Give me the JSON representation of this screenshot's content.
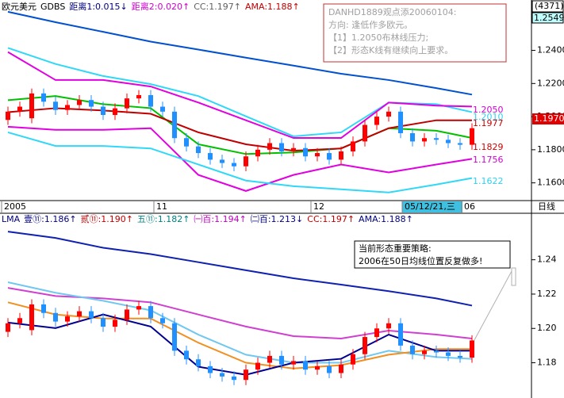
{
  "chart_data": [
    {
      "type": "candlestick",
      "header": [
        {
          "text": "欧元美元",
          "color": "#000000"
        },
        {
          "text": "GDBS",
          "color": "#000000"
        },
        {
          "text": "距离1:0.015↓",
          "color": "#000080"
        },
        {
          "text": "距离2:0.020↑",
          "color": "#d000d0"
        },
        {
          "text": "CC:1.197↑",
          "color": "#606060"
        },
        {
          "text": "AMA:1.188↑",
          "color": "#c00000"
        }
      ],
      "top_labels": [
        "(4371)",
        "1.2549"
      ],
      "current_label": "1.1970",
      "note": [
        "DANHD1889观点添20060104:",
        "方向: 逢低作多欧元。",
        "【1】1.2050布林线压力;",
        "【2】形态K线有继续向上要求。"
      ],
      "annotations": [
        {
          "text": "1.2050",
          "color": "#d000d0"
        },
        {
          "text": "1.2010",
          "color": "#30d0f0"
        },
        {
          "text": "1.1977",
          "color": "#d00000"
        },
        {
          "text": "1.1829",
          "color": "#d00000"
        },
        {
          "text": "1.1756",
          "color": "#d000d0"
        },
        {
          "text": "1.1622",
          "color": "#30d0f0"
        }
      ],
      "x_labels": [
        "2005",
        "11",
        "12",
        "05/12/21,三",
        "06"
      ],
      "period": "日线",
      "up_color": "#ff0000",
      "down_color": "#2090ff",
      "open": [
        1.198,
        1.203,
        1.199,
        1.214,
        1.209,
        1.204,
        1.207,
        1.21,
        1.206,
        1.201,
        1.205,
        1.211,
        1.213,
        1.206,
        1.203,
        1.187,
        1.182,
        1.178,
        1.174,
        1.172,
        1.17,
        1.176,
        1.18,
        1.184,
        1.179,
        1.181,
        1.176,
        1.178,
        1.174,
        1.179,
        1.185,
        1.195,
        1.2,
        1.203,
        1.19,
        1.185,
        1.187,
        1.186,
        1.184,
        1.183
      ],
      "high": [
        1.206,
        1.209,
        1.217,
        1.217,
        1.212,
        1.21,
        1.213,
        1.213,
        1.209,
        1.208,
        1.214,
        1.216,
        1.216,
        1.209,
        1.206,
        1.19,
        1.185,
        1.181,
        1.177,
        1.175,
        1.179,
        1.183,
        1.187,
        1.187,
        1.184,
        1.184,
        1.181,
        1.181,
        1.182,
        1.188,
        1.198,
        1.203,
        1.206,
        1.206,
        1.193,
        1.19,
        1.19,
        1.189,
        1.187,
        1.196
      ],
      "low": [
        1.195,
        1.2,
        1.196,
        1.206,
        1.201,
        1.201,
        1.204,
        1.203,
        1.198,
        1.198,
        1.202,
        1.208,
        1.203,
        1.2,
        1.184,
        1.179,
        1.175,
        1.171,
        1.169,
        1.167,
        1.167,
        1.173,
        1.177,
        1.176,
        1.176,
        1.173,
        1.173,
        1.171,
        1.171,
        1.176,
        1.182,
        1.192,
        1.197,
        1.187,
        1.182,
        1.182,
        1.183,
        1.181,
        1.18,
        1.18
      ],
      "close": [
        1.203,
        1.206,
        1.214,
        1.209,
        1.204,
        1.207,
        1.21,
        1.206,
        1.201,
        1.205,
        1.211,
        1.213,
        1.206,
        1.203,
        1.187,
        1.182,
        1.178,
        1.174,
        1.172,
        1.17,
        1.176,
        1.18,
        1.184,
        1.179,
        1.181,
        1.176,
        1.178,
        1.174,
        1.179,
        1.185,
        1.195,
        1.2,
        1.203,
        1.19,
        1.185,
        1.187,
        1.186,
        1.184,
        1.183,
        1.193
      ],
      "series": [
        {
          "color": "#0050d0",
          "x": [
            0,
            4,
            8,
            12,
            16,
            20,
            24,
            28,
            32,
            36,
            39
          ],
          "values": [
            1.2633,
            1.257,
            1.2512,
            1.2453,
            1.2405,
            1.2356,
            1.2308,
            1.2259,
            1.2221,
            1.2172,
            1.2133
          ]
        },
        {
          "color": "#30d8f8",
          "x": [
            0,
            4,
            8,
            12,
            16,
            20,
            24,
            28,
            32,
            36,
            39
          ],
          "values": [
            1.2415,
            1.2318,
            1.2245,
            1.2196,
            1.2124,
            1.2002,
            1.1881,
            1.1905,
            1.2085,
            1.2075,
            1.2027
          ]
        },
        {
          "color": "#e000e0",
          "x": [
            0,
            4,
            8,
            12,
            16,
            20,
            24,
            28,
            32,
            36,
            39
          ],
          "values": [
            1.239,
            1.2221,
            1.2221,
            1.2182,
            1.2085,
            1.1978,
            1.1871,
            1.1871,
            1.2085,
            1.2066,
            1.2061
          ]
        },
        {
          "color": "#e000e0",
          "x": [
            0,
            4,
            8,
            12,
            16,
            20,
            24,
            28,
            32,
            36,
            39
          ],
          "values": [
            1.1939,
            1.192,
            1.192,
            1.193,
            1.1648,
            1.1551,
            1.1648,
            1.1711,
            1.1663,
            1.1711,
            1.1745
          ]
        },
        {
          "color": "#30d8f8",
          "x": [
            0,
            4,
            8,
            12,
            16,
            20,
            24,
            28,
            32,
            36,
            39
          ],
          "values": [
            1.1905,
            1.1823,
            1.1823,
            1.1808,
            1.1711,
            1.1614,
            1.158,
            1.1561,
            1.1542,
            1.159,
            1.1629
          ]
        },
        {
          "color": "#00c000",
          "x": [
            0,
            4,
            8,
            12,
            16,
            20,
            24,
            28,
            32,
            36,
            39
          ],
          "values": [
            1.2099,
            1.2124,
            1.2075,
            1.2051,
            1.1833,
            1.1774,
            1.1784,
            1.1808,
            1.193,
            1.1915,
            1.1871
          ]
        },
        {
          "color": "#c00000",
          "x": [
            0,
            4,
            8,
            12,
            16,
            20,
            24,
            28,
            32,
            36,
            39
          ],
          "values": [
            1.2027,
            1.2051,
            1.2037,
            1.2017,
            1.1905,
            1.1833,
            1.1794,
            1.1808,
            1.193,
            1.1978,
            1.1978
          ]
        }
      ],
      "ylim": [
        1.1493,
        1.2618
      ],
      "yticks": [
        {
          "value": 1.24,
          "label": "1.2400"
        },
        {
          "value": 1.22,
          "label": "1.2200"
        },
        {
          "value": 1.2,
          "label": "1.2000"
        },
        {
          "value": 1.18,
          "label": "1.1800"
        },
        {
          "value": 1.16,
          "label": "1.1600"
        }
      ]
    },
    {
      "type": "candlestick",
      "header": [
        {
          "text": "LMA",
          "color": "#000080"
        },
        {
          "text": "壹⑪:1.186↑",
          "color": "#000080"
        },
        {
          "text": "贰⑪:1.190↑",
          "color": "#c00000"
        },
        {
          "text": "五⑪:1.182↑",
          "color": "#008080"
        },
        {
          "text": "㈠百:1.194↑",
          "color": "#c000c0"
        },
        {
          "text": "㈡百:1.213↓",
          "color": "#000080"
        },
        {
          "text": "CC:1.197↑",
          "color": "#c00000"
        },
        {
          "text": "AMA:1.188↑",
          "color": "#000080"
        }
      ],
      "note": [
        "当前形态重要策略:",
        "2006在50日均线位置反复做多!"
      ],
      "series": [
        {
          "color": "#1020b0",
          "x": [
            0,
            4,
            8,
            12,
            16,
            20,
            24,
            28,
            32,
            36,
            39
          ],
          "values": [
            1.2564,
            1.2527,
            1.247,
            1.2433,
            1.2386,
            1.2339,
            1.2292,
            1.2255,
            1.2217,
            1.2175,
            1.2133
          ]
        },
        {
          "color": "#d040d0",
          "x": [
            0,
            4,
            8,
            12,
            16,
            20,
            24,
            28,
            32,
            36,
            39
          ],
          "values": [
            1.2236,
            1.2189,
            1.2175,
            1.2152,
            1.2081,
            1.2011,
            1.1955,
            1.1941,
            1.1987,
            1.1964,
            1.1941
          ]
        },
        {
          "color": "#70c8f0",
          "x": [
            0,
            4,
            8,
            12,
            16,
            20,
            24,
            28,
            32,
            36,
            39
          ],
          "values": [
            1.2269,
            1.2208,
            1.2161,
            1.2105,
            1.1964,
            1.1847,
            1.18,
            1.18,
            1.187,
            1.1833,
            1.1823
          ]
        },
        {
          "color": "#f09020",
          "x": [
            0,
            4,
            8,
            12,
            16,
            20,
            24,
            28,
            32,
            36,
            39
          ],
          "values": [
            1.2152,
            1.2081,
            1.2058,
            1.2058,
            1.1917,
            1.18,
            1.1767,
            1.1786,
            1.1847,
            1.188,
            1.188
          ]
        },
        {
          "color": "#000090",
          "x": [
            0,
            4,
            8,
            12,
            16,
            20,
            24,
            28,
            32,
            36,
            39
          ],
          "values": [
            1.2034,
            1.2002,
            1.2081,
            1.2011,
            1.1777,
            1.173,
            1.18,
            1.1823,
            1.1964,
            1.187,
            1.187
          ]
        }
      ],
      "ylim": [
        1.1627,
        1.2597
      ],
      "yticks": [
        1.24,
        1.22,
        {
          "value": 1.2,
          "label": "1.20"
        },
        1.18
      ]
    }
  ]
}
